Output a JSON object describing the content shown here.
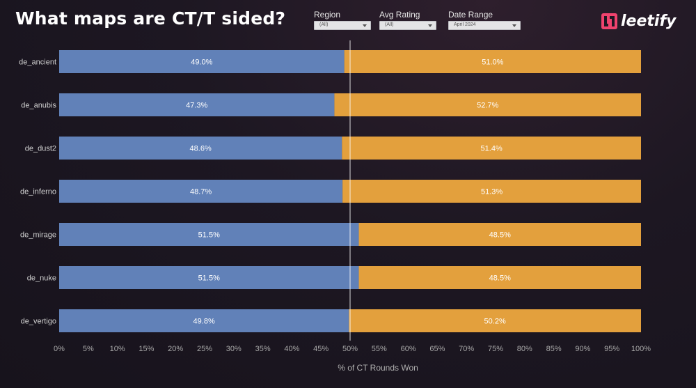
{
  "title": "What maps are CT/T sided?",
  "filters": {
    "region": {
      "label": "Region",
      "value": "(All)"
    },
    "avg_rating": {
      "label": "Avg Rating",
      "value": "(All)"
    },
    "date_range": {
      "label": "Date Range",
      "value": "April 2024"
    }
  },
  "logo": {
    "text": "leetify",
    "color": "#f0436e"
  },
  "colors": {
    "ct": "#6181b8",
    "t": "#e3a03d",
    "reference_line": "#ffffff"
  },
  "chart_data": {
    "type": "bar",
    "orientation": "horizontal",
    "stacked": true,
    "categories": [
      "de_ancient",
      "de_anubis",
      "de_dust2",
      "de_inferno",
      "de_mirage",
      "de_nuke",
      "de_vertigo"
    ],
    "series": [
      {
        "values": [
          49.0,
          47.3,
          48.6,
          48.7,
          51.5,
          51.5,
          49.8
        ],
        "labels": [
          "49.0%",
          "47.3%",
          "48.6%",
          "48.7%",
          "51.5%",
          "51.5%",
          "49.8%"
        ]
      },
      {
        "values": [
          51.0,
          52.7,
          51.4,
          51.3,
          48.5,
          48.5,
          50.2
        ],
        "labels": [
          "51.0%",
          "52.7%",
          "51.4%",
          "51.3%",
          "48.5%",
          "48.5%",
          "50.2%"
        ]
      }
    ],
    "xlabel": "% of CT Rounds Won",
    "xlim": [
      0,
      100
    ],
    "xticks": [
      "0%",
      "5%",
      "10%",
      "15%",
      "20%",
      "25%",
      "30%",
      "35%",
      "40%",
      "45%",
      "50%",
      "55%",
      "60%",
      "65%",
      "70%",
      "75%",
      "80%",
      "85%",
      "90%",
      "95%",
      "100%"
    ],
    "reference_line": 50,
    "grid": false
  }
}
